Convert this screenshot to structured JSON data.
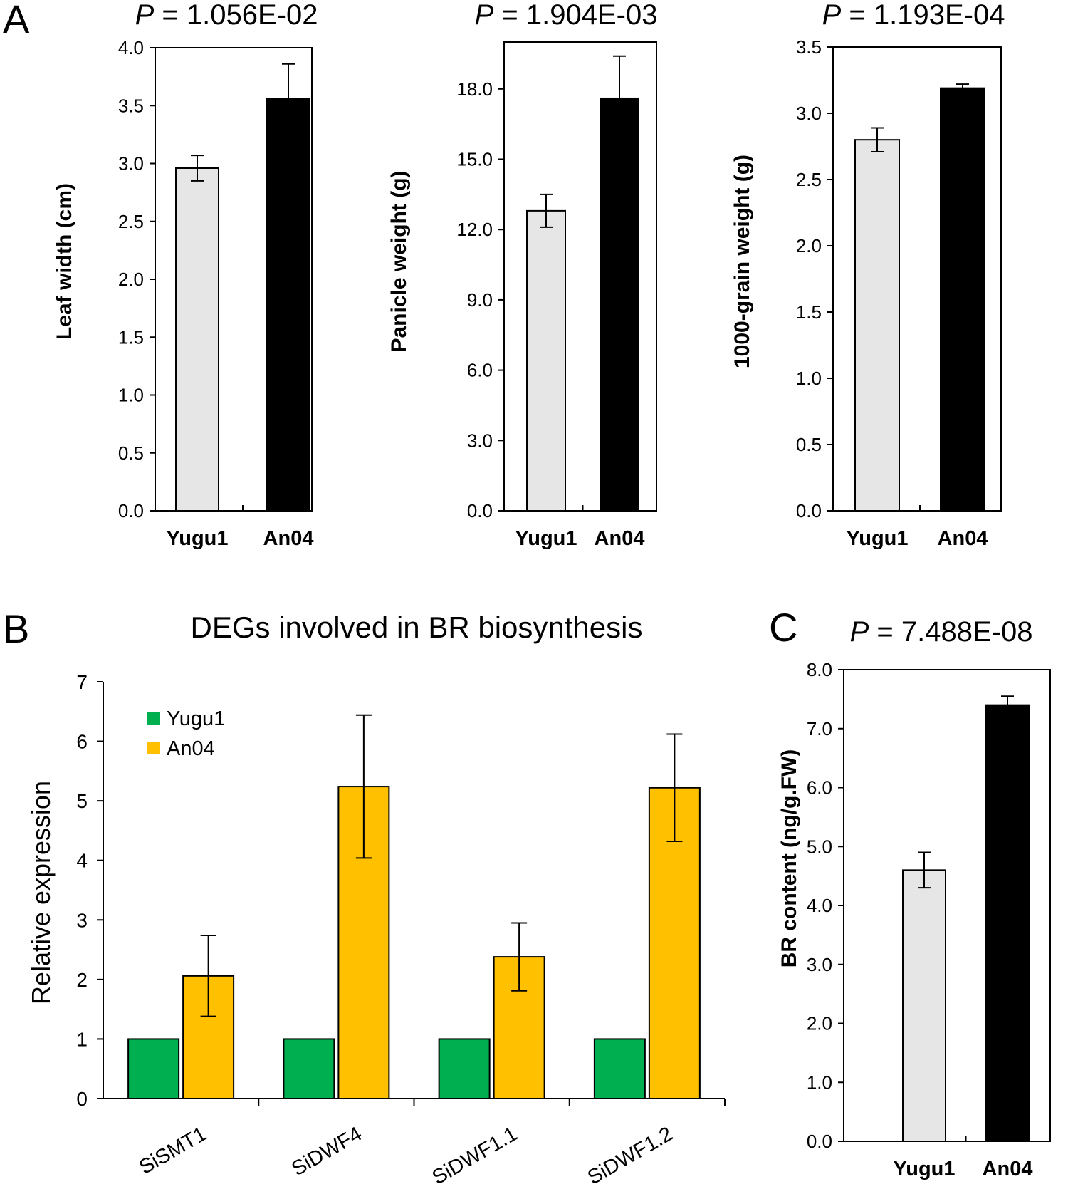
{
  "panels": [
    {
      "letter": "A",
      "p_prefix": "P",
      "p_value": "= 1.056E-02",
      "ylabel": "Leaf width (cm)",
      "chart_data": {
        "type": "bar",
        "categories": [
          "Yugu1",
          "An04"
        ],
        "values": [
          2.96,
          3.56
        ],
        "errors": [
          0.11,
          0.3
        ],
        "ylim": [
          0,
          4.0
        ],
        "yticks": [
          "0.0",
          "0.5",
          "1.0",
          "1.5",
          "2.0",
          "2.5",
          "3.0",
          "3.5",
          "4.0"
        ],
        "colors": [
          "#e6e6e6",
          "#000000"
        ]
      }
    },
    {
      "letter": "",
      "p_prefix": "P",
      "p_value": "= 1.904E-03",
      "ylabel": "Panicle weight (g)",
      "chart_data": {
        "type": "bar",
        "categories": [
          "Yugu1",
          "An04"
        ],
        "values": [
          12.8,
          17.6
        ],
        "errors": [
          0.7,
          1.8
        ],
        "ylim": [
          0,
          20.0
        ],
        "yticks": [
          "0.0",
          "3.0",
          "6.0",
          "9.0",
          "12.0",
          "15.0",
          "18.0"
        ],
        "colors": [
          "#e6e6e6",
          "#000000"
        ]
      }
    },
    {
      "letter": "",
      "p_prefix": "P",
      "p_value": "= 1.193E-04",
      "ylabel": "1000-grain weight (g)",
      "chart_data": {
        "type": "bar",
        "categories": [
          "Yugu1",
          "An04"
        ],
        "values": [
          2.8,
          3.19
        ],
        "errors": [
          0.09,
          0.03
        ],
        "ylim": [
          0,
          3.5
        ],
        "yticks": [
          "0.0",
          "0.5",
          "1.0",
          "1.5",
          "2.0",
          "2.5",
          "3.0",
          "3.5"
        ],
        "colors": [
          "#e6e6e6",
          "#000000"
        ]
      }
    },
    {
      "letter": "C",
      "p_prefix": "P",
      "p_value": "= 7.488E-08",
      "ylabel": "BR content (ng/g.FW)",
      "chart_data": {
        "type": "bar",
        "categories": [
          "Yugu1",
          "An04"
        ],
        "values": [
          4.6,
          7.4
        ],
        "errors": [
          0.3,
          0.15
        ],
        "ylim": [
          0,
          8.0
        ],
        "yticks": [
          "0.0",
          "1.0",
          "2.0",
          "3.0",
          "4.0",
          "5.0",
          "6.0",
          "7.0",
          "8.0"
        ],
        "colors": [
          "#e6e6e6",
          "#000000"
        ]
      }
    }
  ],
  "panelB": {
    "letter": "B",
    "title": "DEGs involved in BR biosynthesis",
    "ylabel": "Relative expression",
    "chart_data": {
      "type": "bar",
      "categories": [
        "SiSMT1",
        "SiDWF4",
        "SiDWF1.1",
        "SiDWF1.2"
      ],
      "series": [
        {
          "name": "Yugu1",
          "values": [
            1,
            1,
            1,
            1
          ],
          "errors": [
            0,
            0,
            0,
            0
          ],
          "color": "#00b050"
        },
        {
          "name": "An04",
          "values": [
            2.06,
            5.24,
            2.38,
            5.22
          ],
          "errors": [
            0.68,
            1.2,
            0.57,
            0.9
          ],
          "color": "#ffc000"
        }
      ],
      "ylim": [
        0,
        7
      ],
      "yticks": [
        "0",
        "1",
        "2",
        "3",
        "4",
        "5",
        "6",
        "7"
      ],
      "legend": "top-left"
    }
  }
}
